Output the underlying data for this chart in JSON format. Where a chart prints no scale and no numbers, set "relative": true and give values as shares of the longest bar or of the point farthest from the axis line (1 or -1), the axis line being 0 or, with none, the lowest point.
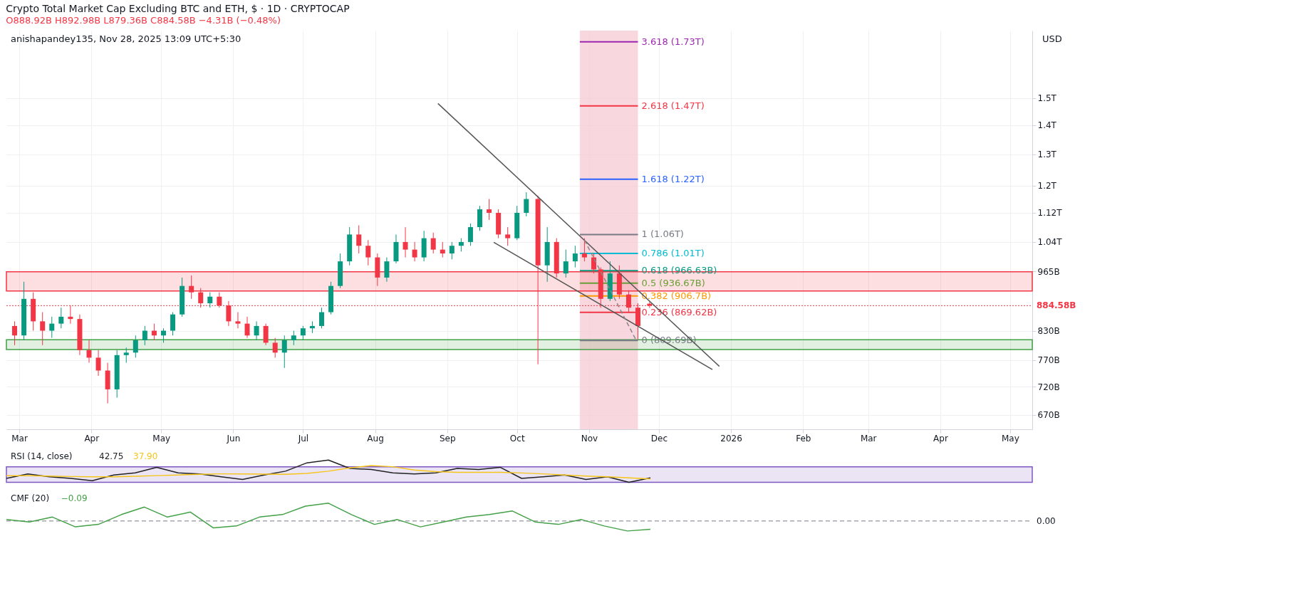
{
  "chart_data": [
    {
      "type": "candlestick",
      "title": "Crypto Total Market Cap Excluding BTC and ETH, $ · 1D · CRYPTOCAP",
      "subtitle": "O888.92B H892.98B L879.36B C884.58B −4.31B (−0.48%)",
      "annotations": [
        "anishapandey135, Nov 28, 2025 13:09 UTC+5:30",
        "USD"
      ],
      "x": [
        "2025-02-27",
        "2025-03-03",
        "2025-03-07",
        "2025-03-11",
        "2025-03-15",
        "2025-03-19",
        "2025-03-23",
        "2025-03-27",
        "2025-03-31",
        "2025-04-04",
        "2025-04-08",
        "2025-04-12",
        "2025-04-16",
        "2025-04-20",
        "2025-04-24",
        "2025-04-28",
        "2025-05-02",
        "2025-05-06",
        "2025-05-10",
        "2025-05-14",
        "2025-05-18",
        "2025-05-22",
        "2025-05-26",
        "2025-05-30",
        "2025-06-03",
        "2025-06-07",
        "2025-06-11",
        "2025-06-15",
        "2025-06-19",
        "2025-06-23",
        "2025-06-27",
        "2025-07-01",
        "2025-07-05",
        "2025-07-09",
        "2025-07-13",
        "2025-07-17",
        "2025-07-21",
        "2025-07-25",
        "2025-07-29",
        "2025-08-02",
        "2025-08-06",
        "2025-08-10",
        "2025-08-14",
        "2025-08-18",
        "2025-08-22",
        "2025-08-26",
        "2025-08-30",
        "2025-09-03",
        "2025-09-07",
        "2025-09-11",
        "2025-09-15",
        "2025-09-19",
        "2025-09-23",
        "2025-09-27",
        "2025-10-01",
        "2025-10-05",
        "2025-10-10",
        "2025-10-14",
        "2025-10-18",
        "2025-10-22",
        "2025-10-26",
        "2025-10-30",
        "2025-11-03",
        "2025-11-06",
        "2025-11-10",
        "2025-11-14",
        "2025-11-18",
        "2025-11-22",
        "2025-11-27"
      ],
      "ohlc": [
        [
          840000000000.0,
          850000000000.0,
          800000000000.0,
          820000000000.0
        ],
        [
          820000000000.0,
          940000000000.0,
          810000000000.0,
          900000000000.0
        ],
        [
          900000000000.0,
          915000000000.0,
          830000000000.0,
          850000000000.0
        ],
        [
          850000000000.0,
          870000000000.0,
          800000000000.0,
          830000000000.0
        ],
        [
          830000000000.0,
          860000000000.0,
          815000000000.0,
          845000000000.0
        ],
        [
          845000000000.0,
          880000000000.0,
          835000000000.0,
          860000000000.0
        ],
        [
          860000000000.0,
          885000000000.0,
          845000000000.0,
          855000000000.0
        ],
        [
          855000000000.0,
          865000000000.0,
          780000000000.0,
          790000000000.0
        ],
        [
          790000000000.0,
          810000000000.0,
          765000000000.0,
          775000000000.0
        ],
        [
          775000000000.0,
          790000000000.0,
          740000000000.0,
          750000000000.0
        ],
        [
          750000000000.0,
          765000000000.0,
          690000000000.0,
          715000000000.0
        ],
        [
          715000000000.0,
          790000000000.0,
          700000000000.0,
          780000000000.0
        ],
        [
          780000000000.0,
          795000000000.0,
          765000000000.0,
          785000000000.0
        ],
        [
          785000000000.0,
          820000000000.0,
          775000000000.0,
          810000000000.0
        ],
        [
          810000000000.0,
          840000000000.0,
          800000000000.0,
          830000000000.0
        ],
        [
          830000000000.0,
          845000000000.0,
          810000000000.0,
          820000000000.0
        ],
        [
          820000000000.0,
          835000000000.0,
          805000000000.0,
          830000000000.0
        ],
        [
          830000000000.0,
          870000000000.0,
          820000000000.0,
          865000000000.0
        ],
        [
          865000000000.0,
          950000000000.0,
          860000000000.0,
          930000000000.0
        ],
        [
          930000000000.0,
          955000000000.0,
          900000000000.0,
          915000000000.0
        ],
        [
          915000000000.0,
          925000000000.0,
          880000000000.0,
          890000000000.0
        ],
        [
          890000000000.0,
          915000000000.0,
          880000000000.0,
          905000000000.0
        ],
        [
          905000000000.0,
          915000000000.0,
          880000000000.0,
          885000000000.0
        ],
        [
          885000000000.0,
          895000000000.0,
          840000000000.0,
          850000000000.0
        ],
        [
          850000000000.0,
          870000000000.0,
          835000000000.0,
          845000000000.0
        ],
        [
          845000000000.0,
          860000000000.0,
          815000000000.0,
          820000000000.0
        ],
        [
          820000000000.0,
          850000000000.0,
          810000000000.0,
          840000000000.0
        ],
        [
          840000000000.0,
          845000000000.0,
          800000000000.0,
          805000000000.0
        ],
        [
          805000000000.0,
          815000000000.0,
          775000000000.0,
          785000000000.0
        ],
        [
          785000000000.0,
          820000000000.0,
          755000000000.0,
          810000000000.0
        ],
        [
          810000000000.0,
          830000000000.0,
          800000000000.0,
          820000000000.0
        ],
        [
          820000000000.0,
          840000000000.0,
          810000000000.0,
          835000000000.0
        ],
        [
          835000000000.0,
          850000000000.0,
          825000000000.0,
          840000000000.0
        ],
        [
          840000000000.0,
          880000000000.0,
          835000000000.0,
          870000000000.0
        ],
        [
          870000000000.0,
          940000000000.0,
          865000000000.0,
          930000000000.0
        ],
        [
          930000000000.0,
          1010000000000.0,
          925000000000.0,
          990000000000.0
        ],
        [
          990000000000.0,
          1080000000000.0,
          980000000000.0,
          1060000000000.0
        ],
        [
          1060000000000.0,
          1085000000000.0,
          1010000000000.0,
          1030000000000.0
        ],
        [
          1030000000000.0,
          1045000000000.0,
          980000000000.0,
          1000000000000.0
        ],
        [
          1000000000000.0,
          1010000000000.0,
          930000000000.0,
          950000000000.0
        ],
        [
          950000000000.0,
          1000000000000.0,
          940000000000.0,
          990000000000.0
        ],
        [
          990000000000.0,
          1060000000000.0,
          985000000000.0,
          1040000000000.0
        ],
        [
          1040000000000.0,
          1080000000000.0,
          1000000000000.0,
          1020000000000.0
        ],
        [
          1020000000000.0,
          1040000000000.0,
          990000000000.0,
          1000000000000.0
        ],
        [
          1000000000000.0,
          1070000000000.0,
          990000000000.0,
          1050000000000.0
        ],
        [
          1050000000000.0,
          1065000000000.0,
          1010000000000.0,
          1020000000000.0
        ],
        [
          1020000000000.0,
          1040000000000.0,
          1000000000000.0,
          1010000000000.0
        ],
        [
          1010000000000.0,
          1040000000000.0,
          995000000000.0,
          1030000000000.0
        ],
        [
          1030000000000.0,
          1050000000000.0,
          1015000000000.0,
          1040000000000.0
        ],
        [
          1040000000000.0,
          1090000000000.0,
          1030000000000.0,
          1080000000000.0
        ],
        [
          1080000000000.0,
          1140000000000.0,
          1070000000000.0,
          1130000000000.0
        ],
        [
          1130000000000.0,
          1160000000000.0,
          1100000000000.0,
          1120000000000.0
        ],
        [
          1120000000000.0,
          1130000000000.0,
          1050000000000.0,
          1060000000000.0
        ],
        [
          1060000000000.0,
          1080000000000.0,
          1030000000000.0,
          1050000000000.0
        ],
        [
          1050000000000.0,
          1140000000000.0,
          1045000000000.0,
          1120000000000.0
        ],
        [
          1120000000000.0,
          1180000000000.0,
          1110000000000.0,
          1160000000000.0
        ],
        [
          1160000000000.0,
          1170000000000.0,
          762000000000.0,
          980000000000.0
        ],
        [
          980000000000.0,
          1080000000000.0,
          940000000000.0,
          1040000000000.0
        ],
        [
          1040000000000.0,
          1050000000000.0,
          950000000000.0,
          960000000000.0
        ],
        [
          960000000000.0,
          1020000000000.0,
          950000000000.0,
          990000000000.0
        ],
        [
          990000000000.0,
          1030000000000.0,
          975000000000.0,
          1010000000000.0
        ],
        [
          1010000000000.0,
          1050000000000.0,
          990000000000.0,
          1000000000000.0
        ],
        [
          1000000000000.0,
          1010000000000.0,
          960000000000.0,
          970000000000.0
        ],
        [
          970000000000.0,
          975000000000.0,
          880000000000.0,
          900000000000.0
        ],
        [
          900000000000.0,
          990000000000.0,
          895000000000.0,
          960000000000.0
        ],
        [
          960000000000.0,
          980000000000.0,
          900000000000.0,
          910000000000.0
        ],
        [
          910000000000.0,
          920000000000.0,
          870000000000.0,
          880000000000.0
        ],
        [
          880000000000.0,
          890000000000.0,
          812000000000.0,
          840000000000.0
        ],
        [
          888920000000.0,
          892980000000.0,
          879360000000.0,
          884580000000.0
        ]
      ],
      "series": [
        {
          "type": "line",
          "color": "#555555",
          "x": [
            "2025-08-28",
            "2025-12-27"
          ],
          "values": [
            1479000000000.0,
            758000000000.0
          ]
        },
        {
          "type": "line",
          "color": "#555555",
          "x": [
            "2025-09-21",
            "2025-12-24"
          ],
          "values": [
            1039000000000.0,
            752000000000.0
          ]
        },
        {
          "type": "line",
          "color": "#888888",
          "line_style": "dashed",
          "x": [
            "2025-10-30",
            "2025-11-21"
          ],
          "values": [
            1045000000000.0,
            812000000000.0
          ]
        }
      ],
      "log": "y",
      "ylim": [
        646000000000.0,
        1780000000000.0
      ],
      "yticks": [
        {
          "value": 670000000000.0,
          "label": "670B"
        },
        {
          "value": 720000000000.0,
          "label": "720B"
        },
        {
          "value": 770000000000.0,
          "label": "770B"
        },
        {
          "value": 830000000000.0,
          "label": "830B"
        },
        {
          "value": 965000000000.0,
          "label": "965B"
        },
        {
          "value": 1040000000000.0,
          "label": "1.04T"
        },
        {
          "value": 1120000000000.0,
          "label": "1.12T"
        },
        {
          "value": 1200000000000.0,
          "label": "1.2T"
        },
        {
          "value": 1300000000000.0,
          "label": "1.3T"
        },
        {
          "value": 1400000000000.0,
          "label": "1.4T"
        },
        {
          "value": 1500000000000.0,
          "label": "1.5T"
        }
      ],
      "xlim": [
        "2025-02-25",
        "2026-05-09"
      ],
      "xticks": [
        {
          "value": "2025-03-01",
          "label": "Mar"
        },
        {
          "value": "2025-04-01",
          "label": "Apr"
        },
        {
          "value": "2025-05-01",
          "label": "May"
        },
        {
          "value": "2025-06-01",
          "label": "Jun"
        },
        {
          "value": "2025-07-01",
          "label": "Jul"
        },
        {
          "value": "2025-08-01",
          "label": "Aug"
        },
        {
          "value": "2025-09-01",
          "label": "Sep"
        },
        {
          "value": "2025-10-01",
          "label": "Oct"
        },
        {
          "value": "2025-11-01",
          "label": "Nov"
        },
        {
          "value": "2025-12-01",
          "label": "Dec"
        },
        {
          "value": "2026-01-01",
          "label": "2026"
        },
        {
          "value": "2026-02-01",
          "label": "Feb"
        },
        {
          "value": "2026-03-01",
          "label": "Mar"
        },
        {
          "value": "2026-04-01",
          "label": "Apr"
        },
        {
          "value": "2026-05-01",
          "label": "May"
        }
      ],
      "grid": true,
      "bands": [
        {
          "axis": "x",
          "from": "2025-10-28",
          "to": "2025-11-22",
          "color": "#f7c6d0"
        },
        {
          "axis": "y",
          "from": 918000000000.0,
          "to": 964000000000.0,
          "color": "#f23645"
        },
        {
          "axis": "y",
          "from": 791000000000.0,
          "to": 811000000000.0,
          "color": "#43a047"
        }
      ],
      "ref_lines": [
        {
          "axis": "y",
          "value": 1730000000000.0,
          "label": "3.618 (1.73T)",
          "color": "#9c27b0"
        },
        {
          "axis": "y",
          "value": 1470000000000.0,
          "label": "2.618 (1.47T)",
          "color": "#f23645"
        },
        {
          "axis": "y",
          "value": 1220000000000.0,
          "label": "1.618 (1.22T)",
          "color": "#2962ff"
        },
        {
          "axis": "y",
          "value": 1060000000000.0,
          "label": "1 (1.06T)",
          "color": "#787b86"
        },
        {
          "axis": "y",
          "value": 1010000000000.0,
          "label": "0.786 (1.01T)",
          "color": "#00bcd4"
        },
        {
          "axis": "y",
          "value": 966630000000.0,
          "label": "0.618 (966.63B)",
          "color": "#089981"
        },
        {
          "axis": "y",
          "value": 936670000000.0,
          "label": "0.5 (936.67B)",
          "color": "#689f38"
        },
        {
          "axis": "y",
          "value": 906700000000.0,
          "label": "0.382 (906.7B)",
          "color": "#ff9800"
        },
        {
          "axis": "y",
          "value": 869620000000.0,
          "label": "0.236 (869.62B)",
          "color": "#f23645"
        },
        {
          "axis": "y",
          "value": 809690000000.0,
          "label": "0 (809.69B)",
          "color": "#787b86"
        },
        {
          "axis": "y",
          "value": 884580000000.0,
          "label": "884.58B",
          "color": "#f23645",
          "line_style": "dotted"
        }
      ]
    },
    {
      "type": "line",
      "title": "RSI (14, close)",
      "annotations": [
        "42.75",
        "37.90"
      ],
      "relative": true,
      "categories": [
        null,
        null,
        null,
        null,
        null,
        null,
        null,
        null,
        null,
        null,
        null,
        null,
        null,
        null,
        null,
        null,
        null,
        null,
        null,
        null,
        null,
        null,
        null,
        null,
        null,
        null,
        null,
        null,
        null,
        null,
        null
      ],
      "bands": [
        {
          "axis": "y",
          "from": 0,
          "to": 0.7,
          "color": "#7e57c2"
        }
      ],
      "series": [
        {
          "color": "#222222",
          "values": [
            0.175,
            0.375,
            0.25,
            0.175,
            0.075,
            0.325,
            0.425,
            0.675,
            0.425,
            0.375,
            0.25,
            0.125,
            0.325,
            0.5,
            0.875,
            1,
            0.625,
            0.575,
            0.425,
            0.375,
            0.425,
            0.625,
            0.575,
            0.675,
            0.175,
            0.25,
            0.325,
            0.125,
            0.25,
            0,
            0.2
          ]
        },
        {
          "color": "#f5c518",
          "values": [
            0.3,
            0.3,
            0.28,
            0.26,
            0.25,
            0.25,
            0.27,
            0.3,
            0.33,
            0.36,
            0.38,
            0.38,
            0.37,
            0.36,
            0.4,
            0.5,
            0.65,
            0.75,
            0.7,
            0.55,
            0.48,
            0.45,
            0.45,
            0.45,
            0.42,
            0.38,
            0.33,
            0.28,
            0.25,
            0.2,
            0.15
          ]
        }
      ]
    },
    {
      "type": "line",
      "title": "CMF (20)",
      "annotations": [
        "−0.09"
      ],
      "relative": true,
      "categories": [
        null,
        null,
        null,
        null,
        null,
        null,
        null,
        null,
        null,
        null,
        null,
        null,
        null,
        null,
        null,
        null,
        null,
        null,
        null,
        null,
        null,
        null,
        null,
        null,
        null,
        null,
        null,
        null,
        null
      ],
      "ref_lines": [
        {
          "axis": "y",
          "value": 0,
          "label": "0.00",
          "color": "#787b86",
          "line_style": "dashed"
        }
      ],
      "series": [
        {
          "color": "#43a047",
          "values": [
            0.08,
            -0.06,
            0.22,
            -0.33,
            -0.19,
            0.36,
            0.78,
            0.22,
            0.5,
            -0.39,
            -0.28,
            0.22,
            0.36,
            0.83,
            1,
            0.36,
            -0.19,
            0.08,
            -0.33,
            -0.06,
            0.22,
            0.36,
            0.56,
            -0.06,
            -0.19,
            0.08,
            -0.28,
            -0.56,
            -0.47
          ]
        }
      ]
    }
  ]
}
